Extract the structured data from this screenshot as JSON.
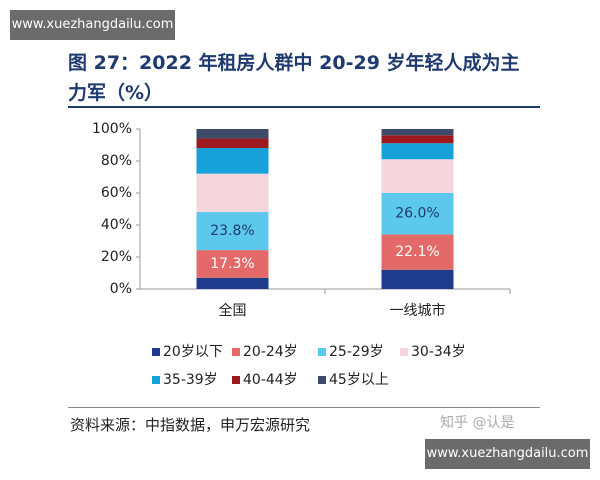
{
  "watermark_top": "www.xuezhangdailu.com",
  "watermark_bottom": "www.xuezhangdailu.com",
  "watermark_zhihu": "知乎 @认是",
  "chart_data": {
    "type": "stacked_bar",
    "title": "图 27：2022 年租房人群中 20-29 岁年轻人成为主力军（%）",
    "source": "资料来源：中指数据，申万宏源研究",
    "categories": [
      "全国",
      "一线城市"
    ],
    "series": [
      {
        "name": "20岁以下",
        "color": "#1f3b8c",
        "values": [
          7,
          12
        ],
        "value_labels": [
          null,
          null
        ]
      },
      {
        "name": "20-24岁",
        "color": "#e46a6a",
        "values": [
          17.3,
          22.1
        ],
        "value_labels": [
          "17.3%",
          "22.1%"
        ]
      },
      {
        "name": "25-29岁",
        "color": "#5cc9ec",
        "values": [
          23.8,
          26.0
        ],
        "value_labels": [
          "23.8%",
          "26.0%"
        ]
      },
      {
        "name": "30-34岁",
        "color": "#f5d6dc",
        "values": [
          24,
          21
        ],
        "value_labels": [
          null,
          null
        ]
      },
      {
        "name": "35-39岁",
        "color": "#16a2d8",
        "values": [
          16,
          10
        ],
        "value_labels": [
          null,
          null
        ]
      },
      {
        "name": "40-44岁",
        "color": "#9c1a1f",
        "values": [
          6,
          5
        ],
        "value_labels": [
          null,
          null
        ]
      },
      {
        "name": "45岁以上",
        "color": "#3e4a6a",
        "values": [
          5.9,
          3.9
        ],
        "value_labels": [
          null,
          null
        ]
      }
    ],
    "ylim": [
      0,
      100
    ],
    "yticks": [
      {
        "value": 0,
        "label": "0%"
      },
      {
        "value": 20,
        "label": "20%"
      },
      {
        "value": 40,
        "label": "40%"
      },
      {
        "value": 60,
        "label": "60%"
      },
      {
        "value": 80,
        "label": "80%"
      },
      {
        "value": 100,
        "label": "100%"
      }
    ],
    "grid": false
  }
}
